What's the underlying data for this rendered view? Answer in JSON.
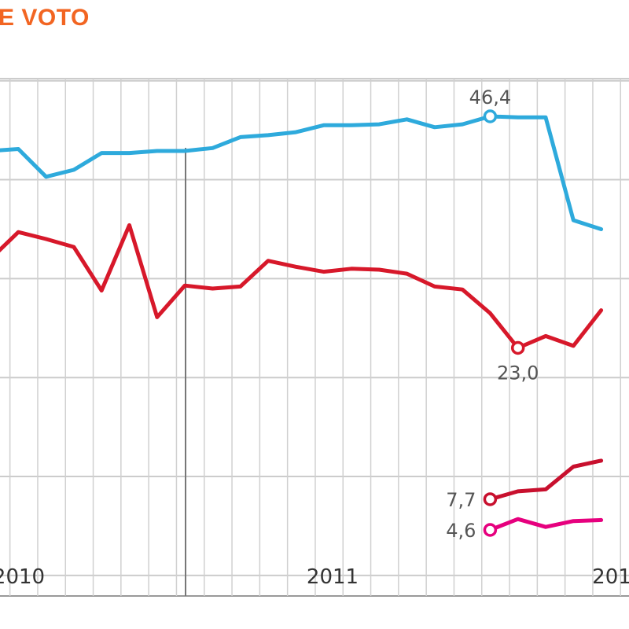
{
  "chart_data": {
    "type": "line",
    "title": "E VOTO",
    "xlabel": "",
    "ylabel": "",
    "ylim": [
      0,
      60
    ],
    "x_tick_labels": [
      "2010",
      "2011",
      "201"
    ],
    "grid": true,
    "x": [
      "p01",
      "p02",
      "p03",
      "p04",
      "p05",
      "p06",
      "p07",
      "p08",
      "p09",
      "p10",
      "p11",
      "p12",
      "p13",
      "p14",
      "p15",
      "p16",
      "p17",
      "p18",
      "p19",
      "p20",
      "p21",
      "p22",
      "p23",
      "p24",
      "p25",
      "p26"
    ],
    "series": [
      {
        "color": "#2eaadc",
        "values": [
          42.9,
          43.1,
          40.3,
          41.0,
          42.7,
          42.7,
          42.9,
          42.9,
          43.2,
          44.3,
          44.5,
          44.8,
          45.5,
          45.5,
          45.6,
          46.1,
          45.3,
          45.6,
          46.4,
          46.3,
          46.3,
          35.9,
          35.0,
          null,
          null,
          null
        ],
        "labels": [
          {
            "index": 18,
            "text": "46,4",
            "position": "above"
          }
        ]
      },
      {
        "color": "#d7182a",
        "values": [
          32.0,
          34.7,
          34.0,
          33.2,
          28.8,
          35.4,
          26.1,
          29.3,
          29.0,
          29.2,
          31.8,
          31.2,
          30.7,
          31.0,
          30.9,
          30.5,
          29.2,
          28.9,
          26.5,
          23.0,
          24.2,
          23.2,
          26.8,
          null,
          null,
          null
        ],
        "labels": [
          {
            "index": 19,
            "text": "23,0",
            "position": "below"
          }
        ]
      },
      {
        "color": "#c8102e",
        "values": [
          null,
          null,
          null,
          null,
          null,
          null,
          null,
          null,
          null,
          null,
          null,
          null,
          null,
          null,
          null,
          null,
          null,
          null,
          7.7,
          8.5,
          8.7,
          11.0,
          11.6,
          null,
          null,
          null
        ],
        "labels": [
          {
            "index": 18,
            "text": "7,7",
            "position": "left"
          }
        ]
      },
      {
        "color": "#e6007e",
        "values": [
          null,
          null,
          null,
          null,
          null,
          null,
          null,
          null,
          null,
          null,
          null,
          null,
          null,
          null,
          null,
          null,
          null,
          null,
          4.6,
          5.7,
          4.9,
          5.5,
          5.6,
          null,
          null,
          null
        ],
        "labels": [
          {
            "index": 18,
            "text": "4,6",
            "position": "left"
          }
        ]
      }
    ]
  }
}
